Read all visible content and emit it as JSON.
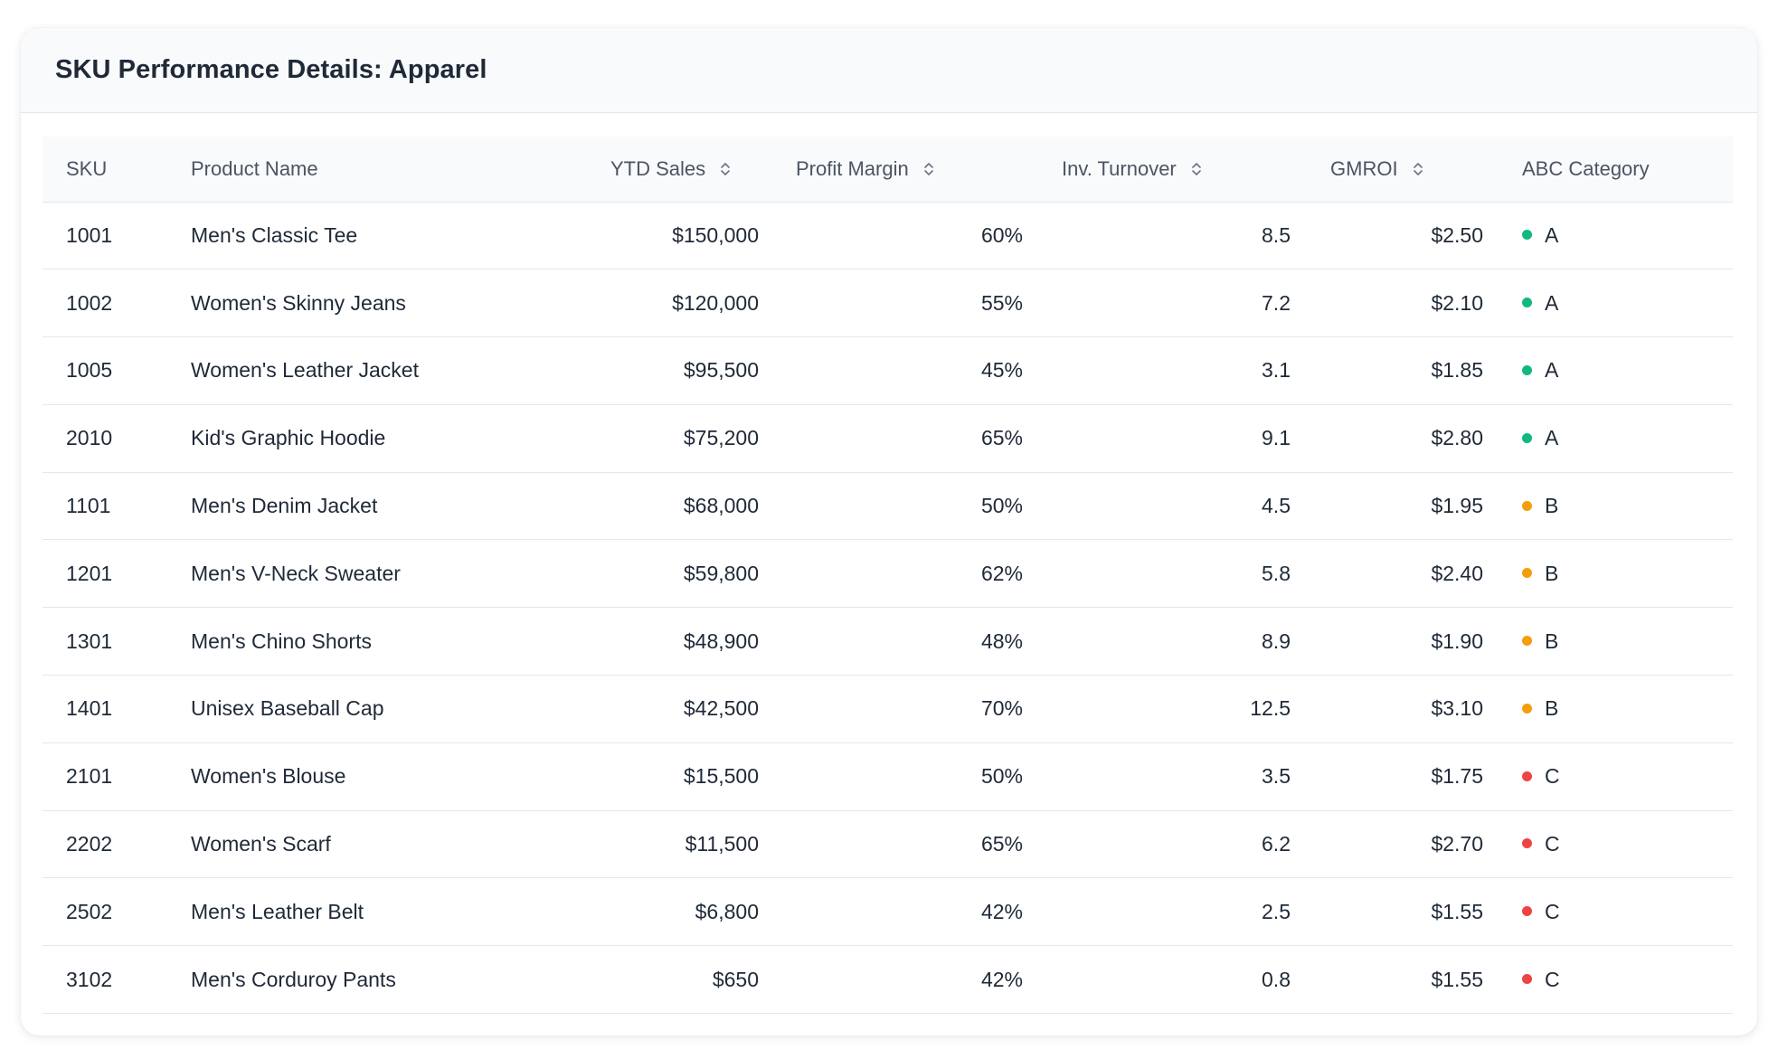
{
  "card": {
    "title": "SKU Performance Details: Apparel"
  },
  "table": {
    "columns": [
      {
        "key": "sku",
        "label": "SKU",
        "sortable": false
      },
      {
        "key": "name",
        "label": "Product Name",
        "sortable": false
      },
      {
        "key": "ytd",
        "label": "YTD Sales",
        "sortable": true
      },
      {
        "key": "margin",
        "label": "Profit Margin",
        "sortable": true
      },
      {
        "key": "turnover",
        "label": "Inv. Turnover",
        "sortable": true
      },
      {
        "key": "gmroi",
        "label": "GMROI",
        "sortable": true
      },
      {
        "key": "abc",
        "label": "ABC Category",
        "sortable": false
      }
    ],
    "rows": [
      {
        "sku": "1001",
        "name": "Men's Classic Tee",
        "ytd": "$150,000",
        "margin": "60%",
        "turnover": "8.5",
        "gmroi": "$2.50",
        "abc": "A"
      },
      {
        "sku": "1002",
        "name": "Women's Skinny Jeans",
        "ytd": "$120,000",
        "margin": "55%",
        "turnover": "7.2",
        "gmroi": "$2.10",
        "abc": "A"
      },
      {
        "sku": "1005",
        "name": "Women's Leather Jacket",
        "ytd": "$95,500",
        "margin": "45%",
        "turnover": "3.1",
        "gmroi": "$1.85",
        "abc": "A"
      },
      {
        "sku": "2010",
        "name": "Kid's Graphic Hoodie",
        "ytd": "$75,200",
        "margin": "65%",
        "turnover": "9.1",
        "gmroi": "$2.80",
        "abc": "A"
      },
      {
        "sku": "1101",
        "name": "Men's Denim Jacket",
        "ytd": "$68,000",
        "margin": "50%",
        "turnover": "4.5",
        "gmroi": "$1.95",
        "abc": "B"
      },
      {
        "sku": "1201",
        "name": "Men's V-Neck Sweater",
        "ytd": "$59,800",
        "margin": "62%",
        "turnover": "5.8",
        "gmroi": "$2.40",
        "abc": "B"
      },
      {
        "sku": "1301",
        "name": "Men's Chino Shorts",
        "ytd": "$48,900",
        "margin": "48%",
        "turnover": "8.9",
        "gmroi": "$1.90",
        "abc": "B"
      },
      {
        "sku": "1401",
        "name": "Unisex Baseball Cap",
        "ytd": "$42,500",
        "margin": "70%",
        "turnover": "12.5",
        "gmroi": "$3.10",
        "abc": "B"
      },
      {
        "sku": "2101",
        "name": "Women's Blouse",
        "ytd": "$15,500",
        "margin": "50%",
        "turnover": "3.5",
        "gmroi": "$1.75",
        "abc": "C"
      },
      {
        "sku": "2202",
        "name": "Women's Scarf",
        "ytd": "$11,500",
        "margin": "65%",
        "turnover": "6.2",
        "gmroi": "$2.70",
        "abc": "C"
      },
      {
        "sku": "2502",
        "name": "Men's Leather Belt",
        "ytd": "$6,800",
        "margin": "42%",
        "turnover": "2.5",
        "gmroi": "$1.55",
        "abc": "C"
      },
      {
        "sku": "3102",
        "name": "Men's Corduroy Pants",
        "ytd": "$650",
        "margin": "42%",
        "turnover": "0.8",
        "gmroi": "$1.55",
        "abc": "C"
      }
    ]
  },
  "category_colors": {
    "A": "#10b981",
    "B": "#f59e0b",
    "C": "#ef4444"
  },
  "icons": {
    "sort": "sort-icon",
    "category": "status-dot-icon"
  }
}
